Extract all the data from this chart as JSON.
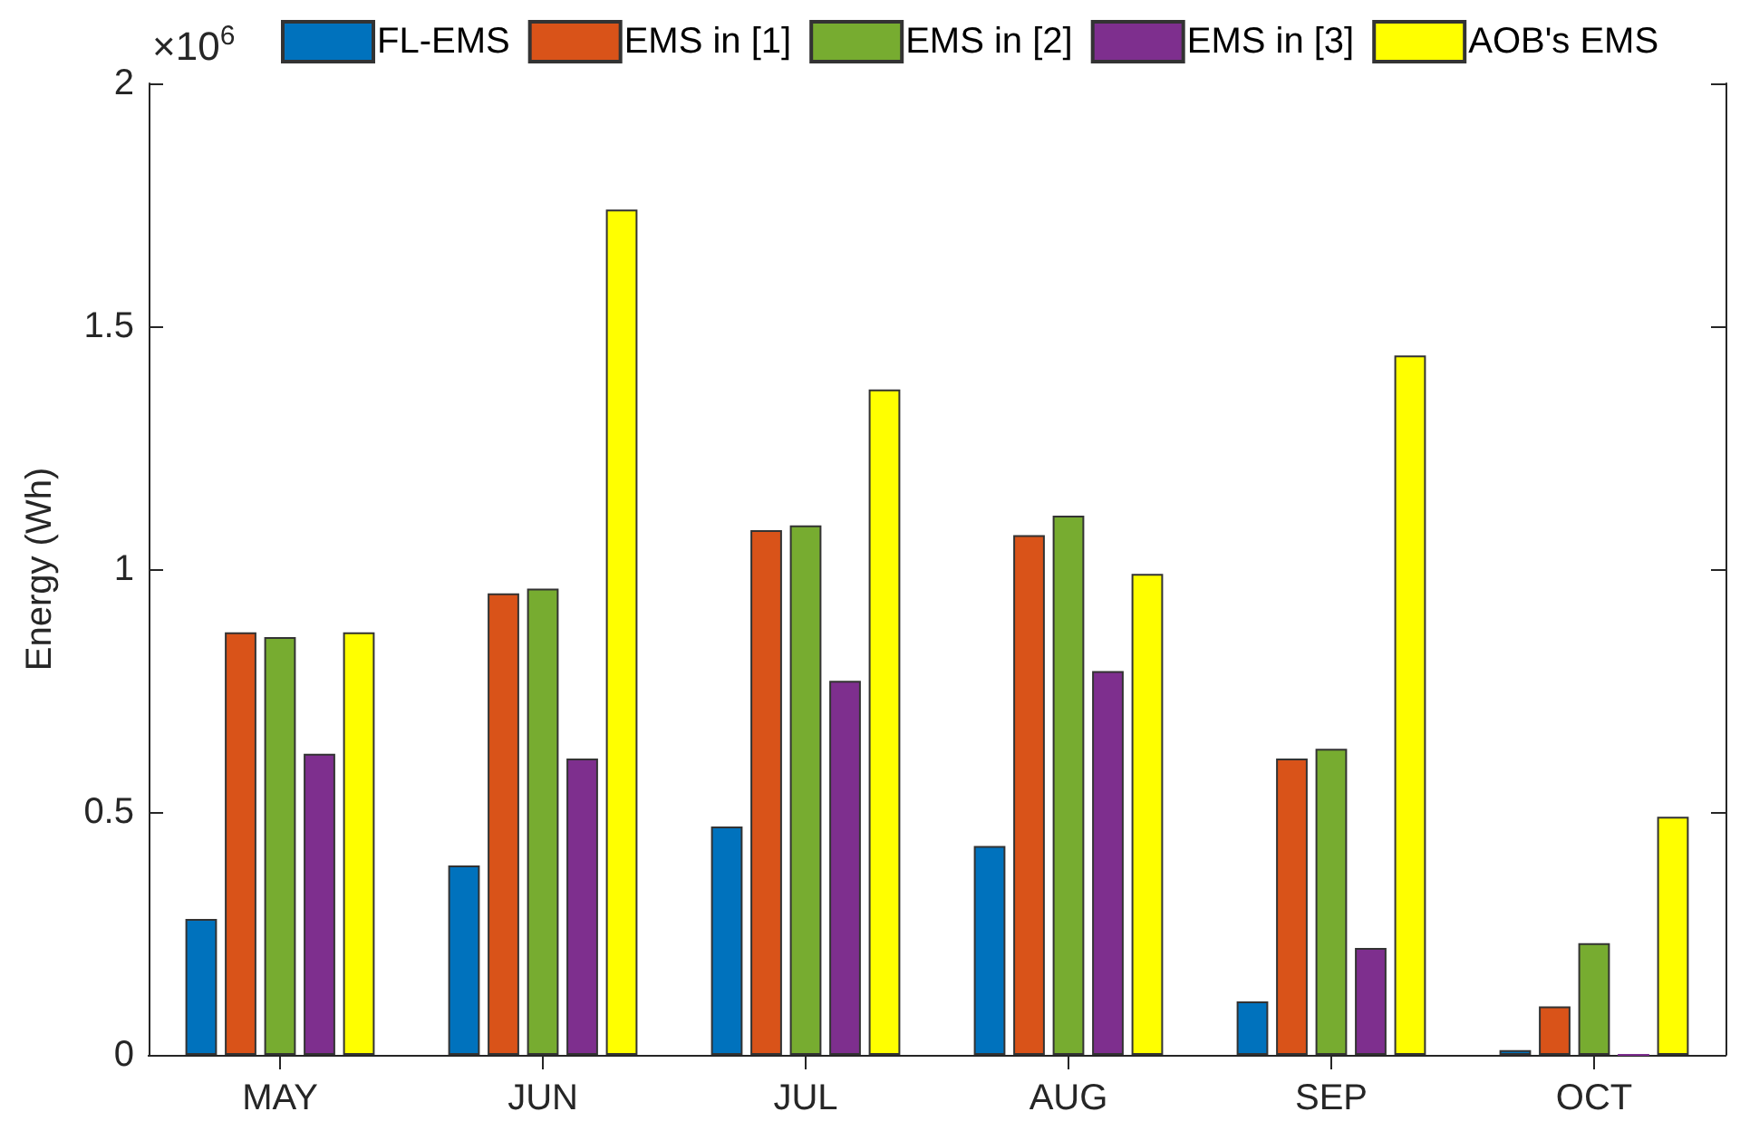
{
  "chart_data": {
    "type": "bar",
    "ylabel": "Energy (Wh)",
    "annotations": [
      "×10$^{6}$"
    ],
    "categories": [
      "MAY",
      "JUN",
      "JUL",
      "AUG",
      "SEP",
      "OCT"
    ],
    "series": [
      {
        "name": "FL-EMS",
        "color": "#0072bd",
        "values": [
          0.28,
          0.39,
          0.47,
          0.43,
          0.11,
          0.01
        ]
      },
      {
        "name": "EMS in [1]",
        "color": "#d95319",
        "values": [
          0.87,
          0.95,
          1.08,
          1.07,
          0.61,
          0.1
        ]
      },
      {
        "name": "EMS in [2]",
        "color": "#77ac30",
        "values": [
          0.86,
          0.96,
          1.09,
          1.11,
          0.63,
          0.23
        ]
      },
      {
        "name": "EMS in [3]",
        "color": "#7e2f8e",
        "values": [
          0.62,
          0.61,
          0.77,
          0.79,
          0.22,
          0
        ]
      },
      {
        "name": "AOB's EMS",
        "color": "#ffff00",
        "values": [
          0.87,
          1.74,
          1.37,
          0.99,
          1.44,
          0.49
        ]
      }
    ],
    "ylim": [
      0,
      2
    ],
    "yticks": [
      0,
      0.5,
      1,
      1.5,
      2
    ],
    "grid": false,
    "legend": "top"
  }
}
